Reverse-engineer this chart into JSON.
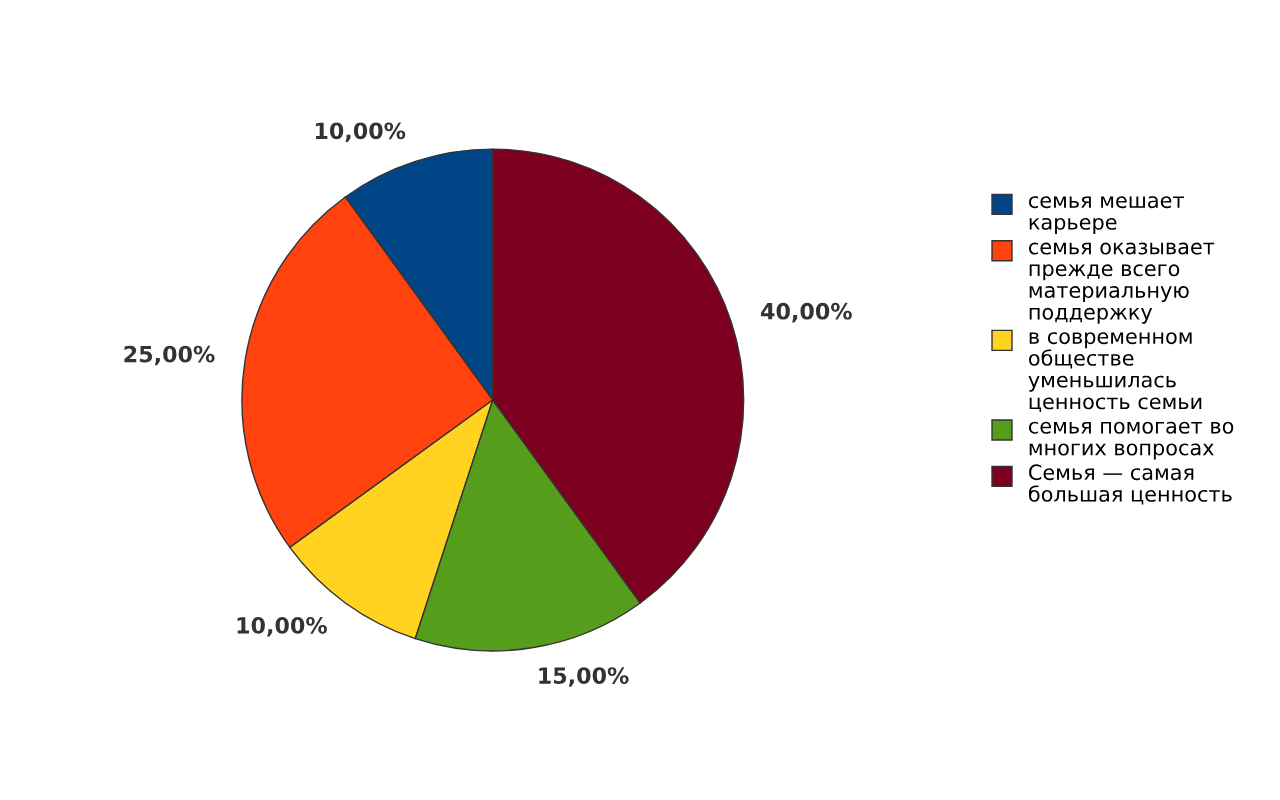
{
  "chart_data": {
    "type": "pie",
    "categories": [
      "семья мешает карьере",
      "семья оказывает прежде всего материальную поддержку",
      "в современном обществе уменьшилась ценность семьи",
      "семья помогает во многих вопросах",
      "Семья — самая большая ценность"
    ],
    "values": [
      10,
      25,
      10,
      15,
      40
    ],
    "value_labels": [
      "10,00%",
      "25,00%",
      "10,00%",
      "15,00%",
      "40,00%"
    ],
    "colors": [
      "#004586",
      "#ff420e",
      "#ffd320",
      "#579d1c",
      "#7e0021"
    ],
    "legend": "right"
  }
}
